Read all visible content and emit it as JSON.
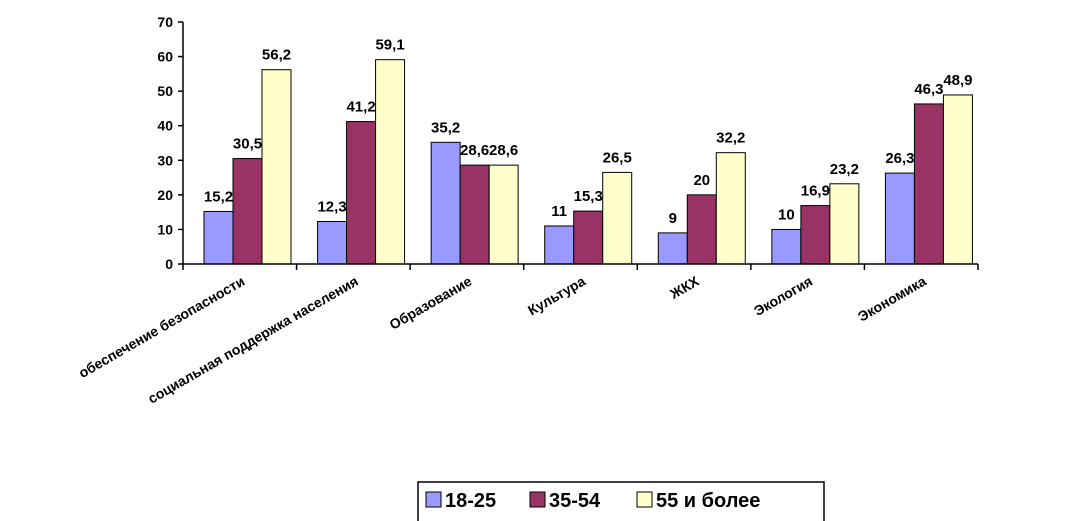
{
  "chart_data": {
    "type": "bar",
    "categories": [
      "обеспечение безопасности",
      "социальная поддержка населения",
      "Образование",
      "Культура",
      "ЖКХ",
      "Экология",
      "Экономика"
    ],
    "series": [
      {
        "name": "18-25",
        "color": "#9999ff",
        "values": [
          15.2,
          12.3,
          35.2,
          11,
          9,
          10,
          26.3
        ],
        "labels": [
          "15,2",
          "12,3",
          "35,2",
          "11",
          "9",
          "10",
          "26,3"
        ]
      },
      {
        "name": "35-54",
        "color": "#993366",
        "values": [
          30.5,
          41.2,
          28.6,
          15.3,
          20,
          16.9,
          46.3
        ],
        "labels": [
          "30,5",
          "41,2",
          "28,6",
          "15,3",
          "20",
          "16,9",
          "46,3"
        ]
      },
      {
        "name": "55 и более",
        "color": "#ffffcc",
        "values": [
          56.2,
          59.1,
          28.6,
          26.5,
          32.2,
          23.2,
          48.9
        ],
        "labels": [
          "56,2",
          "59,1",
          "28,6",
          "26,5",
          "32,2",
          "23,2",
          "48,9"
        ]
      }
    ],
    "yticks": [
      0,
      10,
      20,
      30,
      40,
      50,
      60,
      70
    ],
    "ylim": [
      0,
      70
    ],
    "grid": false,
    "legend": "bottom"
  }
}
